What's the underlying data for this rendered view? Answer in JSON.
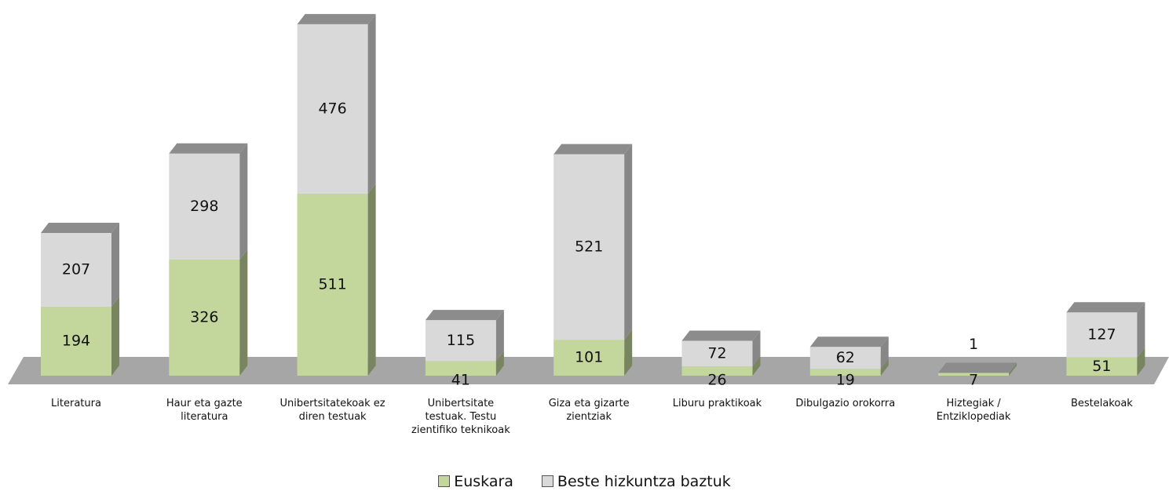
{
  "chart_data": {
    "type": "bar",
    "stacked": true,
    "three_d": true,
    "categories": [
      "Literatura",
      "Haur eta gazte literatura",
      "Unibertsitatekoak ez diren testuak",
      "Unibertsitate testuak. Testu zientifiko teknikoak",
      "Giza eta gizarte zientziak",
      "Liburu praktikoak",
      "Dibulgazio orokorra",
      "Hiztegiak / Entziklopediak",
      "Bestelakoak"
    ],
    "series": [
      {
        "name": "Euskara",
        "color": "#c3d69b",
        "values": [
          194,
          326,
          511,
          41,
          101,
          26,
          19,
          7,
          51
        ]
      },
      {
        "name": "Beste hizkuntza baztuk",
        "color": "#d9d9d9",
        "values": [
          207,
          298,
          476,
          115,
          521,
          72,
          62,
          1,
          127
        ]
      }
    ],
    "legend": "bottom"
  }
}
